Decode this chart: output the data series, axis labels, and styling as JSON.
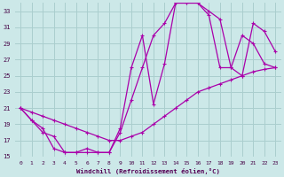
{
  "xlabel": "Windchill (Refroidissement éolien,°C)",
  "background_color": "#cce8e8",
  "grid_color": "#aacece",
  "line_color": "#aa00aa",
  "xlim": [
    -0.5,
    23.5
  ],
  "ylim": [
    15,
    34
  ],
  "yticks": [
    15,
    17,
    19,
    21,
    23,
    25,
    27,
    29,
    31,
    33
  ],
  "xticks": [
    0,
    1,
    2,
    3,
    4,
    5,
    6,
    7,
    8,
    9,
    10,
    11,
    12,
    13,
    14,
    15,
    16,
    17,
    18,
    19,
    20,
    21,
    22,
    23
  ],
  "curve1_x": [
    0,
    1,
    2,
    3,
    4,
    5,
    6,
    7,
    8,
    9,
    10,
    11,
    12,
    13,
    14,
    15,
    16,
    17,
    18,
    19,
    20,
    21,
    22,
    23
  ],
  "curve1_y": [
    21,
    19.5,
    18.5,
    16,
    15.5,
    15.5,
    16,
    15.5,
    15.5,
    18,
    22,
    26,
    30,
    31.5,
    34,
    34,
    34,
    33,
    32,
    26,
    25,
    31.5,
    30.5,
    28
  ],
  "curve2_x": [
    0,
    1,
    2,
    3,
    4,
    5,
    6,
    7,
    8,
    9,
    10,
    11,
    12,
    13,
    14,
    15,
    16,
    17,
    18,
    19,
    20,
    21,
    22,
    23
  ],
  "curve2_y": [
    21,
    20.5,
    20,
    19.5,
    19,
    18.5,
    18,
    17.5,
    17,
    17,
    17.5,
    18,
    19,
    20,
    21,
    22,
    23,
    23.5,
    24,
    24.5,
    25,
    25.5,
    25.8,
    26
  ],
  "curve3_x": [
    0,
    1,
    2,
    3,
    4,
    5,
    6,
    7,
    8,
    9,
    10,
    11,
    12,
    13,
    14,
    15,
    16,
    17,
    18,
    19,
    20,
    21,
    22,
    23
  ],
  "curve3_y": [
    21,
    19.5,
    18,
    17.5,
    15.5,
    15.5,
    15.5,
    15.5,
    15.5,
    18.5,
    26,
    30,
    21.5,
    26.5,
    34,
    34,
    34,
    32.5,
    26,
    26,
    30,
    29,
    26.5,
    26
  ],
  "marker_size": 3.5,
  "linewidth": 0.9
}
